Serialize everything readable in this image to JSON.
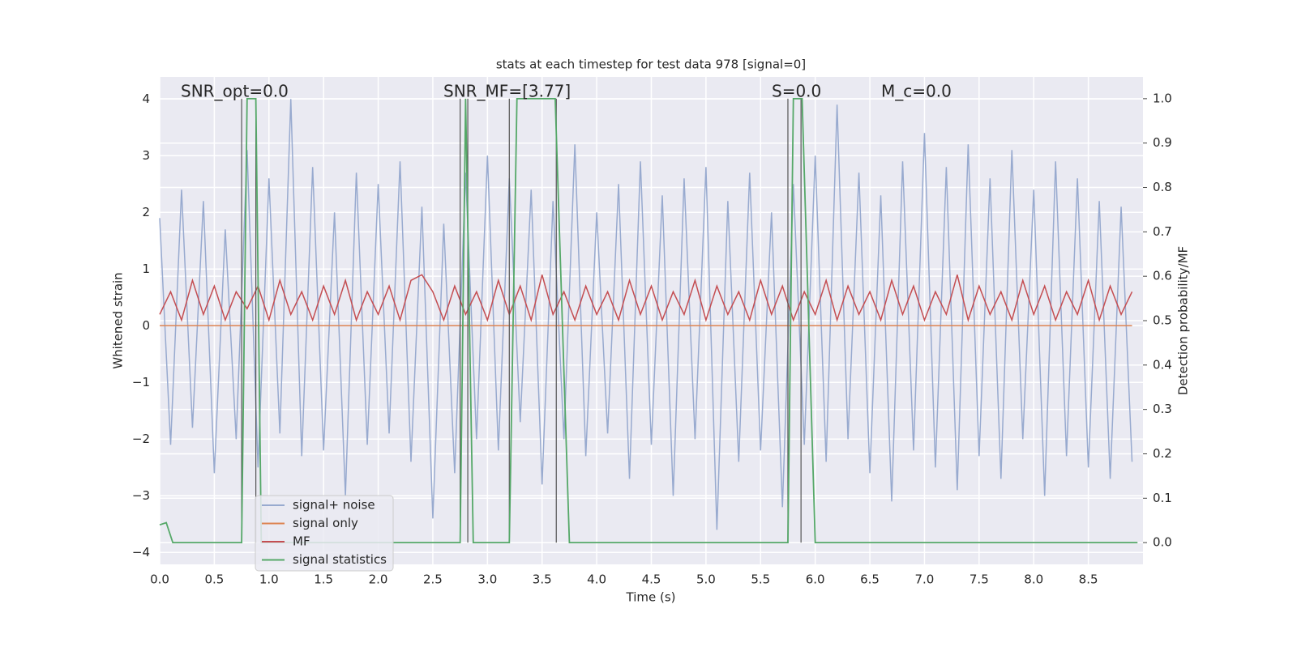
{
  "chart_data": {
    "type": "line",
    "title": "stats at each timestep for test data 978 [signal=0]",
    "xlabel": "Time (s)",
    "ylabel": "Whitened strain",
    "y2label": "Detection probability/MF",
    "annotations": [
      "SNR_opt=0.0",
      "SNR_MF=[3.77]",
      "S=0.0",
      "M_c=0.0"
    ],
    "x": [
      0,
      0.1,
      0.2,
      0.3,
      0.4,
      0.5,
      0.6,
      0.7,
      0.8,
      0.9,
      1,
      1.1,
      1.2,
      1.3,
      1.4,
      1.5,
      1.6,
      1.7,
      1.8,
      1.9,
      2,
      2.1,
      2.2,
      2.3,
      2.4,
      2.5,
      2.6,
      2.7,
      2.8,
      2.9,
      3,
      3.1,
      3.2,
      3.3,
      3.4,
      3.5,
      3.6,
      3.7,
      3.8,
      3.9,
      4,
      4.1,
      4.2,
      4.3,
      4.4,
      4.5,
      4.6,
      4.7,
      4.8,
      4.9,
      5,
      5.1,
      5.2,
      5.3,
      5.4,
      5.5,
      5.6,
      5.7,
      5.8,
      5.9,
      6,
      6.1,
      6.2,
      6.3,
      6.4,
      6.5,
      6.6,
      6.7,
      6.8,
      6.9,
      7,
      7.1,
      7.2,
      7.3,
      7.4,
      7.5,
      7.6,
      7.7,
      7.8,
      7.9,
      8,
      8.1,
      8.2,
      8.3,
      8.4,
      8.5,
      8.6,
      8.7,
      8.8,
      8.9
    ],
    "series": [
      {
        "name": "signal+ noise",
        "color": "#98aacf",
        "values": [
          1.9,
          -2.1,
          2.4,
          -1.8,
          2.2,
          -2.6,
          1.7,
          -2.0,
          3.1,
          -2.5,
          2.6,
          -1.9,
          4.0,
          -2.3,
          2.8,
          -2.2,
          2.0,
          -3.0,
          2.7,
          -2.1,
          2.5,
          -1.9,
          2.9,
          -2.4,
          2.1,
          -3.4,
          1.8,
          -2.6,
          2.7,
          -2.0,
          3.0,
          -2.2,
          2.6,
          -1.7,
          2.4,
          -2.8,
          2.2,
          -2.0,
          3.2,
          -2.3,
          2.0,
          -1.9,
          2.5,
          -2.7,
          2.9,
          -2.1,
          2.3,
          -3.0,
          2.6,
          -2.0,
          2.8,
          -3.6,
          2.2,
          -2.4,
          2.7,
          -2.2,
          2.0,
          -3.2,
          2.5,
          -2.1,
          3.0,
          -2.4,
          3.9,
          -2.0,
          2.7,
          -2.6,
          2.3,
          -3.1,
          2.9,
          -2.2,
          3.4,
          -2.5,
          2.8,
          -2.9,
          3.2,
          -2.3,
          2.6,
          -2.7,
          3.1,
          -2.0,
          2.4,
          -3.0,
          2.9,
          -2.3,
          2.6,
          -2.5,
          2.2,
          -2.7,
          2.1,
          -2.4
        ]
      },
      {
        "name": "signal only",
        "color": "#dd8452",
        "x": [
          0,
          8.9
        ],
        "values": [
          0,
          0
        ]
      },
      {
        "name": "MF",
        "color": "#c44e52",
        "values": [
          0.2,
          0.6,
          0.1,
          0.8,
          0.2,
          0.7,
          0.1,
          0.6,
          0.3,
          0.7,
          0.1,
          0.8,
          0.2,
          0.6,
          0.1,
          0.7,
          0.2,
          0.8,
          0.1,
          0.6,
          0.2,
          0.7,
          0.1,
          0.8,
          0.9,
          0.6,
          0.1,
          0.7,
          0.2,
          0.6,
          0.1,
          0.8,
          0.2,
          0.7,
          0.1,
          0.9,
          0.2,
          0.6,
          0.1,
          0.7,
          0.2,
          0.6,
          0.1,
          0.8,
          0.2,
          0.7,
          0.1,
          0.6,
          0.2,
          0.8,
          0.1,
          0.7,
          0.2,
          0.6,
          0.1,
          0.8,
          0.2,
          0.7,
          0.1,
          0.6,
          0.2,
          0.8,
          0.1,
          0.7,
          0.2,
          0.6,
          0.1,
          0.8,
          0.2,
          0.7,
          0.1,
          0.6,
          0.2,
          0.9,
          0.1,
          0.7,
          0.2,
          0.6,
          0.1,
          0.8,
          0.2,
          0.7,
          0.1,
          0.6,
          0.2,
          0.8,
          0.1,
          0.7,
          0.2,
          0.6
        ]
      },
      {
        "name": "signal statistics",
        "color": "#55a868",
        "axis": "y2",
        "x": [
          0,
          0.06,
          0.12,
          0.4,
          0.75,
          0.8,
          0.88,
          0.93,
          2.75,
          2.8,
          2.87,
          3.2,
          3.27,
          3.62,
          3.75,
          5.75,
          5.8,
          5.88,
          6.0,
          8.95
        ],
        "values": [
          0.04,
          0.045,
          0,
          0,
          0,
          1,
          1,
          0,
          0,
          1,
          0,
          0,
          1,
          1,
          0,
          0,
          1,
          1,
          0,
          0
        ]
      }
    ],
    "vlines": [
      0.75,
      0.88,
      2.75,
      2.82,
      3.2,
      3.63,
      5.75,
      5.87
    ],
    "vline_range": [
      0,
      1
    ],
    "xlim": [
      0,
      9
    ],
    "ylim": [
      -4.21,
      4.39
    ],
    "y2lim": [
      -0.049,
      1.049
    ],
    "xticks": [
      {
        "value": 0,
        "label": "0.0"
      },
      0.5,
      {
        "value": 1,
        "label": "1.0"
      },
      1.5,
      {
        "value": 2,
        "label": "2.0"
      },
      2.5,
      {
        "value": 3,
        "label": "3.0"
      },
      3.5,
      {
        "value": 4,
        "label": "4.0"
      },
      4.5,
      {
        "value": 5,
        "label": "5.0"
      },
      5.5,
      {
        "value": 6,
        "label": "6.0"
      },
      6.5,
      {
        "value": 7,
        "label": "7.0"
      },
      7.5,
      {
        "value": 8,
        "label": "8.0"
      },
      8.5
    ],
    "yticks": [
      {
        "value": -4,
        "label": "−4"
      },
      {
        "value": -3,
        "label": "−3"
      },
      {
        "value": -2,
        "label": "−2"
      },
      {
        "value": -1,
        "label": "−1"
      },
      0,
      1,
      2,
      3,
      4
    ],
    "y2ticks": [
      {
        "value": 0,
        "label": "0.0"
      },
      0.1,
      0.2,
      0.3,
      0.4,
      0.5,
      0.6,
      0.7,
      0.8,
      0.9,
      {
        "value": 1,
        "label": "1.0"
      }
    ],
    "grid": true,
    "legend": "lower left"
  }
}
